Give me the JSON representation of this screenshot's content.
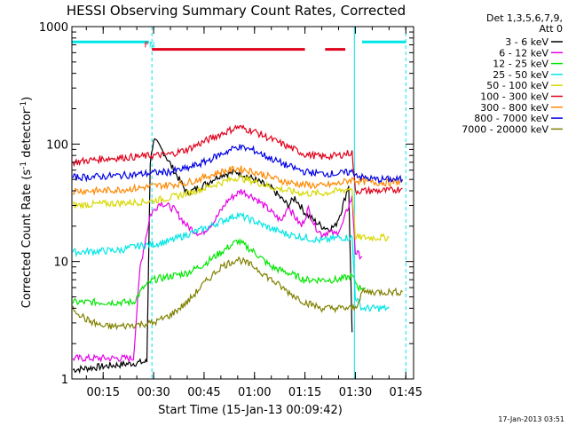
{
  "chart_data": {
    "type": "line",
    "title": "HESSI Observing Summary Count Rates, Corrected",
    "xlabel": "Start Time (15-Jan-13 00:09:42)",
    "ylabel_main": "Corrected Count Rate (s",
    "ylabel_sup1": "-1",
    "ylabel_mid": " detector",
    "ylabel_sup2": "-1",
    "ylabel_end": ")",
    "y_scale": "log",
    "ylim": [
      1,
      1000
    ],
    "xlim_minutes": [
      5.7,
      107.3
    ],
    "x_ticks": [
      {
        "label": "00:15",
        "minutes": 15
      },
      {
        "label": "00:30",
        "minutes": 30
      },
      {
        "label": "00:45",
        "minutes": 45
      },
      {
        "label": "01:00",
        "minutes": 60
      },
      {
        "label": "01:15",
        "minutes": 75
      },
      {
        "label": "01:30",
        "minutes": 90
      },
      {
        "label": "01:45",
        "minutes": 105
      }
    ],
    "y_ticks": [
      {
        "label": "1",
        "value": 1
      },
      {
        "label": "10",
        "value": 10
      },
      {
        "label": "100",
        "value": 100
      },
      {
        "label": "1000",
        "value": 1000
      }
    ],
    "legend_header": [
      "Det 1,3,5,6,7,9,",
      "Att 0"
    ],
    "legend_position": "outside-right",
    "footer_date": "17-Jan-2013 03:51",
    "flags": [
      {
        "label": "F",
        "color": "#e0001a",
        "x_minutes": 27.9
      },
      {
        "label": "N",
        "color": "#00e6e6",
        "x_minutes": 29.5
      }
    ],
    "flag_bars": [
      {
        "color": "#00e6e6",
        "segments": [
          [
            5.7,
            28.6
          ],
          [
            92.0,
            105.0
          ]
        ],
        "y_value": 740
      },
      {
        "color": "#e0001a",
        "segments": [
          [
            29.5,
            75.0
          ],
          [
            81.0,
            87.0
          ]
        ],
        "y_value": 640
      }
    ],
    "night_boundaries_minutes": [
      29.5,
      89.7,
      105.0
    ],
    "series": [
      {
        "name": "3 - 6 keV",
        "color": "#000000",
        "x": [
          6,
          28,
          29,
          30,
          33,
          36,
          40,
          45,
          50,
          55,
          60,
          65,
          70,
          72,
          75,
          78,
          80,
          82,
          84,
          86,
          88,
          89
        ],
        "y": [
          1.2,
          1.4,
          70,
          110,
          85,
          60,
          38,
          45,
          55,
          58,
          50,
          42,
          30,
          35,
          26,
          22,
          20,
          19,
          20,
          28,
          45,
          2.5
        ]
      },
      {
        "name": "6 - 12 keV",
        "color": "#e600e6",
        "x": [
          6,
          24,
          26,
          29,
          32,
          36,
          40,
          44,
          48,
          52,
          56,
          60,
          64,
          68,
          70,
          72,
          74,
          76,
          78,
          80,
          82,
          84,
          86,
          88,
          89,
          90,
          92
        ],
        "y": [
          1.5,
          1.5,
          9,
          25,
          32,
          28,
          20,
          17,
          22,
          33,
          40,
          35,
          28,
          22,
          30,
          24,
          20,
          28,
          20,
          17,
          18,
          17,
          20,
          30,
          35,
          12,
          11
        ]
      },
      {
        "name": "12 - 25 keV",
        "color": "#00e600",
        "x": [
          6,
          24,
          27,
          30,
          35,
          40,
          45,
          50,
          55,
          60,
          65,
          70,
          75,
          80,
          85,
          89,
          91,
          93
        ],
        "y": [
          4.5,
          4.5,
          6,
          7,
          7.5,
          8,
          9.5,
          12,
          15,
          12,
          9,
          8,
          7,
          7,
          7,
          7.5,
          6,
          6
        ]
      },
      {
        "name": "25 - 50 keV",
        "color": "#00e6e6",
        "x": [
          6,
          20,
          25,
          30,
          35,
          40,
          45,
          50,
          55,
          60,
          65,
          70,
          75,
          80,
          85,
          89,
          90,
          92,
          96,
          100
        ],
        "y": [
          12,
          12.5,
          13.5,
          14,
          15,
          17,
          19,
          22,
          25,
          22,
          19,
          17,
          16,
          15,
          16,
          16,
          5,
          4,
          4,
          4
        ]
      },
      {
        "name": "50 - 100 keV",
        "color": "#d8d800",
        "x": [
          6,
          15,
          25,
          30,
          35,
          40,
          45,
          50,
          55,
          60,
          65,
          70,
          75,
          80,
          85,
          89,
          90,
          92,
          96,
          100
        ],
        "y": [
          30,
          31,
          32,
          33,
          35,
          38,
          42,
          47,
          52,
          48,
          43,
          40,
          38,
          38,
          40,
          42,
          16,
          16,
          16,
          16
        ]
      },
      {
        "name": "100 - 300 keV",
        "color": "#e0001a",
        "x": [
          6,
          15,
          25,
          30,
          35,
          40,
          45,
          50,
          55,
          60,
          65,
          70,
          75,
          80,
          85,
          89,
          90,
          95,
          100,
          104
        ],
        "y": [
          70,
          75,
          78,
          80,
          82,
          90,
          105,
          122,
          140,
          128,
          110,
          95,
          82,
          78,
          80,
          85,
          40,
          40,
          40,
          42
        ]
      },
      {
        "name": "300 - 800 keV",
        "color": "#ff8800",
        "x": [
          6,
          15,
          25,
          30,
          35,
          40,
          45,
          50,
          55,
          60,
          65,
          70,
          75,
          80,
          85,
          89,
          92,
          96,
          100,
          104
        ],
        "y": [
          40,
          40,
          42,
          44,
          45,
          47,
          52,
          58,
          62,
          58,
          52,
          47,
          45,
          44,
          46,
          50,
          48,
          47,
          47,
          48
        ]
      },
      {
        "name": "800 - 7000 keV",
        "color": "#0000e6",
        "x": [
          6,
          15,
          25,
          30,
          35,
          40,
          45,
          50,
          55,
          60,
          65,
          70,
          75,
          80,
          85,
          89,
          92,
          96,
          100,
          104
        ],
        "y": [
          52,
          53,
          55,
          57,
          58,
          62,
          70,
          82,
          95,
          88,
          75,
          65,
          58,
          56,
          56,
          58,
          52,
          50,
          50,
          50
        ]
      },
      {
        "name": "7000 - 20000 keV",
        "color": "#808000",
        "x": [
          6,
          10,
          15,
          20,
          25,
          30,
          35,
          40,
          45,
          50,
          55,
          60,
          65,
          70,
          75,
          80,
          85,
          89,
          90,
          92,
          96,
          100,
          104
        ],
        "y": [
          4,
          3.2,
          2.8,
          2.8,
          2.9,
          3.0,
          3.5,
          4.5,
          6.5,
          9,
          10.5,
          9,
          7,
          5.5,
          4.5,
          4,
          4,
          4,
          4,
          5.5,
          5.5,
          5.5,
          5.5
        ]
      }
    ]
  }
}
